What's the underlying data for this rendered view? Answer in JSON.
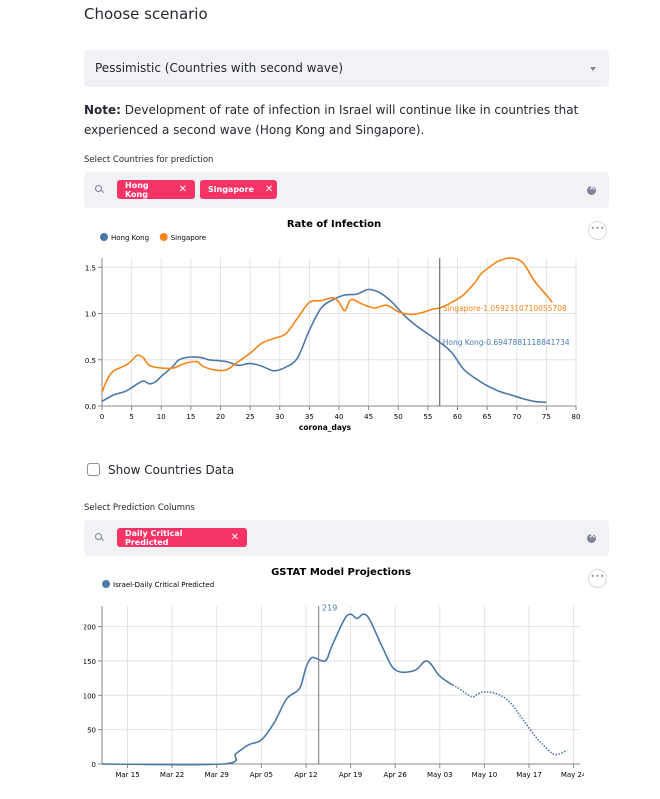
{
  "scenario": {
    "heading": "Choose scenario",
    "selected": "Pessimistic (Countries with second wave)"
  },
  "note": {
    "bold": "Note:",
    "text": " Development of rate of infection in Israel will continue like in countries that experienced a second wave (Hong Kong and Singapore)."
  },
  "countries": {
    "label": "Select Countries for prediction",
    "tags": [
      "Hong Kong",
      "Singapore"
    ]
  },
  "show_data": {
    "label": "Show Countries Data",
    "checked": false
  },
  "prediction_columns": {
    "label": "Select Prediction Columns",
    "tags": [
      "Daily Critical Predicted"
    ]
  },
  "colors": {
    "accent": "#f63366",
    "blue": "#4c78a8",
    "orange": "#f58518",
    "input_bg": "#f0f2f6"
  },
  "chart_data": [
    {
      "type": "line",
      "title": "Rate of Infection",
      "xlabel": "corona_days",
      "ylabel": "",
      "xlim": [
        0,
        80
      ],
      "ylim": [
        0,
        1.6
      ],
      "x_ticks": [
        0,
        5,
        10,
        15,
        20,
        25,
        30,
        35,
        40,
        45,
        50,
        55,
        60,
        65,
        70,
        75,
        80
      ],
      "y_ticks": [
        "0.0",
        "0.5",
        "1.0",
        "1.5"
      ],
      "legend_position": "top-left",
      "rule_x": 57,
      "annotations": [
        "Singapore-1.0592310710055708",
        "Hong Kong-0.6947881118841734"
      ],
      "series": [
        {
          "name": "Hong Kong",
          "color": "#4c78a8",
          "points": [
            [
              0,
              0.05
            ],
            [
              2,
              0.12
            ],
            [
              4,
              0.16
            ],
            [
              6,
              0.24
            ],
            [
              7,
              0.27
            ],
            [
              8,
              0.24
            ],
            [
              9,
              0.26
            ],
            [
              10,
              0.32
            ],
            [
              12,
              0.43
            ],
            [
              13,
              0.5
            ],
            [
              15,
              0.53
            ],
            [
              17,
              0.52
            ],
            [
              18,
              0.5
            ],
            [
              21,
              0.48
            ],
            [
              23,
              0.44
            ],
            [
              25,
              0.46
            ],
            [
              27,
              0.43
            ],
            [
              29,
              0.38
            ],
            [
              31,
              0.42
            ],
            [
              33,
              0.52
            ],
            [
              35,
              0.82
            ],
            [
              37,
              1.06
            ],
            [
              39,
              1.15
            ],
            [
              41,
              1.2
            ],
            [
              43,
              1.21
            ],
            [
              45,
              1.26
            ],
            [
              47,
              1.22
            ],
            [
              49,
              1.12
            ],
            [
              51,
              0.98
            ],
            [
              53,
              0.87
            ],
            [
              55,
              0.78
            ],
            [
              57,
              0.69
            ],
            [
              59,
              0.58
            ],
            [
              61,
              0.4
            ],
            [
              63,
              0.3
            ],
            [
              65,
              0.22
            ],
            [
              67,
              0.16
            ],
            [
              69,
              0.12
            ],
            [
              71,
              0.08
            ],
            [
              73,
              0.05
            ],
            [
              75,
              0.04
            ]
          ]
        },
        {
          "name": "Singapore",
          "color": "#f58518",
          "points": [
            [
              0,
              0.15
            ],
            [
              1,
              0.3
            ],
            [
              2,
              0.38
            ],
            [
              4,
              0.44
            ],
            [
              5,
              0.49
            ],
            [
              6,
              0.55
            ],
            [
              7,
              0.52
            ],
            [
              8,
              0.44
            ],
            [
              10,
              0.41
            ],
            [
              12,
              0.41
            ],
            [
              14,
              0.46
            ],
            [
              16,
              0.48
            ],
            [
              17,
              0.43
            ],
            [
              19,
              0.39
            ],
            [
              21,
              0.39
            ],
            [
              23,
              0.48
            ],
            [
              25,
              0.57
            ],
            [
              27,
              0.68
            ],
            [
              29,
              0.73
            ],
            [
              31,
              0.78
            ],
            [
              33,
              0.95
            ],
            [
              35,
              1.12
            ],
            [
              37,
              1.14
            ],
            [
              39,
              1.17
            ],
            [
              40,
              1.12
            ],
            [
              41,
              1.03
            ],
            [
              42,
              1.15
            ],
            [
              44,
              1.1
            ],
            [
              46,
              1.06
            ],
            [
              48,
              1.09
            ],
            [
              50,
              1.02
            ],
            [
              52,
              0.99
            ],
            [
              54,
              1.01
            ],
            [
              56,
              1.05
            ],
            [
              57,
              1.06
            ],
            [
              59,
              1.12
            ],
            [
              61,
              1.2
            ],
            [
              63,
              1.34
            ],
            [
              64,
              1.43
            ],
            [
              66,
              1.53
            ],
            [
              67,
              1.57
            ],
            [
              69,
              1.6
            ],
            [
              71,
              1.55
            ],
            [
              73,
              1.35
            ],
            [
              75,
              1.2
            ],
            [
              76,
              1.12
            ]
          ]
        }
      ]
    },
    {
      "type": "line",
      "title": "GSTAT Model Projections",
      "xlabel": "",
      "ylabel": "",
      "x_ticks": [
        "Mar 15",
        "Mar 22",
        "Mar 29",
        "Apr 05",
        "Apr 12",
        "Apr 19",
        "Apr 26",
        "May 03",
        "May 10",
        "May 17",
        "May 24"
      ],
      "x_range": [
        "2020-03-11",
        "2020-05-25"
      ],
      "ylim": [
        0,
        230
      ],
      "y_ticks": [
        0,
        50,
        100,
        150,
        200
      ],
      "legend_position": "top-left",
      "rule_date": "2020-04-14",
      "rule_label": "219",
      "series": [
        {
          "name": "Israel-Daily Critical Predicted",
          "color": "#4c78a8",
          "solid": [
            [
              "2020-03-11",
              0
            ],
            [
              "2020-03-30",
              0
            ],
            [
              "2020-04-01",
              15
            ],
            [
              "2020-04-03",
              28
            ],
            [
              "2020-04-05",
              35
            ],
            [
              "2020-04-07",
              60
            ],
            [
              "2020-04-09",
              95
            ],
            [
              "2020-04-11",
              110
            ],
            [
              "2020-04-12",
              140
            ],
            [
              "2020-04-13",
              155
            ],
            [
              "2020-04-15",
              150
            ],
            [
              "2020-04-16",
              170
            ],
            [
              "2020-04-18",
              210
            ],
            [
              "2020-04-19",
              218
            ],
            [
              "2020-04-20",
              212
            ],
            [
              "2020-04-21",
              218
            ],
            [
              "2020-04-22",
              210
            ],
            [
              "2020-04-24",
              170
            ],
            [
              "2020-04-26",
              137
            ],
            [
              "2020-04-29",
              136
            ],
            [
              "2020-05-01",
              150
            ],
            [
              "2020-05-03",
              128
            ],
            [
              "2020-05-05",
              115
            ]
          ],
          "dashed": [
            [
              "2020-05-05",
              115
            ],
            [
              "2020-05-06",
              110
            ],
            [
              "2020-05-08",
              98
            ],
            [
              "2020-05-09",
              102
            ],
            [
              "2020-05-10",
              105
            ],
            [
              "2020-05-12",
              102
            ],
            [
              "2020-05-14",
              90
            ],
            [
              "2020-05-16",
              65
            ],
            [
              "2020-05-18",
              40
            ],
            [
              "2020-05-19",
              30
            ],
            [
              "2020-05-21",
              14
            ],
            [
              "2020-05-23",
              20
            ],
            [
              "2020-05-26",
              35
            ],
            [
              "2020-05-28",
              45
            ],
            [
              "2020-05-30",
              55
            ]
          ]
        }
      ]
    }
  ]
}
